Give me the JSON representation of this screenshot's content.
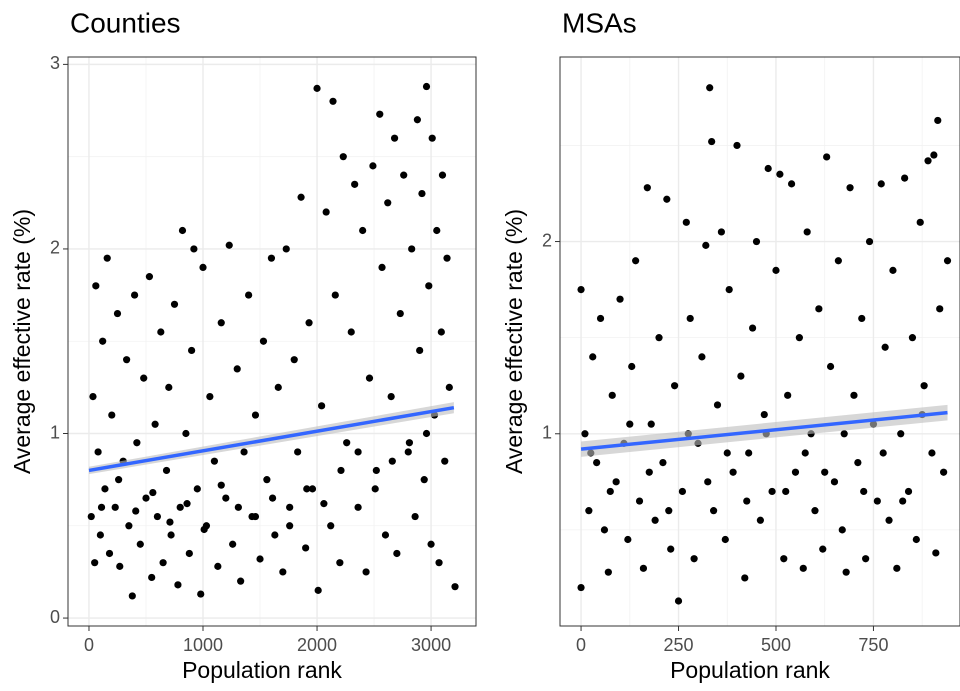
{
  "chart_data": [
    {
      "type": "scatter",
      "title": "Counties",
      "x_label": "Population rank",
      "y_label": "Average effective rate (%)",
      "color": "#000000",
      "fit_color": "#3366ff",
      "band_color": "#bdbdbd",
      "grid": true,
      "xlim": [
        -184,
        3394
      ],
      "ylim": [
        -0.043,
        3.04
      ],
      "xticks": [
        0,
        1000,
        2000,
        3000
      ],
      "yticks": [
        0,
        1,
        2,
        3
      ],
      "minor_xticks": [
        500,
        1500,
        2500
      ],
      "minor_yticks": [
        0.5,
        1.5,
        2.5
      ],
      "x": [
        20,
        35,
        50,
        60,
        80,
        100,
        120,
        140,
        160,
        180,
        200,
        230,
        250,
        270,
        300,
        330,
        350,
        380,
        400,
        420,
        450,
        480,
        500,
        530,
        550,
        580,
        600,
        630,
        650,
        680,
        700,
        720,
        750,
        780,
        800,
        820,
        850,
        880,
        900,
        920,
        950,
        980,
        1000,
        1030,
        1060,
        1100,
        1130,
        1160,
        1200,
        1230,
        1260,
        1300,
        1330,
        1360,
        1400,
        1430,
        1460,
        1500,
        1530,
        1560,
        1600,
        1630,
        1660,
        1700,
        1730,
        1760,
        1800,
        1830,
        1860,
        1900,
        1930,
        1960,
        2000,
        2010,
        2040,
        2080,
        2120,
        2140,
        2160,
        2200,
        2230,
        2260,
        2300,
        2330,
        2360,
        2400,
        2430,
        2460,
        2490,
        2520,
        2550,
        2570,
        2600,
        2620,
        2650,
        2680,
        2700,
        2730,
        2760,
        2800,
        2830,
        2860,
        2880,
        2900,
        2920,
        2940,
        2960,
        2980,
        3000,
        3010,
        3030,
        3050,
        3070,
        3090,
        3100,
        3120,
        3140,
        3160,
        3210,
        110,
        260,
        410,
        560,
        710,
        860,
        1010,
        1160,
        1310,
        1460,
        1610,
        1760,
        1910,
        2060,
        2210,
        2360,
        2510,
        2660,
        2810,
        2960
      ],
      "values": [
        0.55,
        1.2,
        0.3,
        1.8,
        0.9,
        0.45,
        1.5,
        0.7,
        1.95,
        0.35,
        1.1,
        0.6,
        1.65,
        0.28,
        0.85,
        1.4,
        0.5,
        0.12,
        1.75,
        0.95,
        0.4,
        1.3,
        0.65,
        1.85,
        0.22,
        1.05,
        0.55,
        1.55,
        0.3,
        0.8,
        1.25,
        0.45,
        1.7,
        0.18,
        0.6,
        2.1,
        1.0,
        0.35,
        1.45,
        2.0,
        0.7,
        0.13,
        1.9,
        0.5,
        1.2,
        0.85,
        0.28,
        1.6,
        0.65,
        2.02,
        0.4,
        1.35,
        0.2,
        0.9,
        1.75,
        0.55,
        1.1,
        0.32,
        1.5,
        0.75,
        1.95,
        0.45,
        1.25,
        0.25,
        2.0,
        0.6,
        1.4,
        0.9,
        2.28,
        0.38,
        1.6,
        0.7,
        2.87,
        0.15,
        1.15,
        2.2,
        0.5,
        2.8,
        1.75,
        0.3,
        2.5,
        0.95,
        1.55,
        2.35,
        0.6,
        2.1,
        0.25,
        1.3,
        2.45,
        0.8,
        2.73,
        1.9,
        0.45,
        2.25,
        1.2,
        2.6,
        0.35,
        1.65,
        2.4,
        0.9,
        2.0,
        0.55,
        2.7,
        1.45,
        2.3,
        0.75,
        2.88,
        1.8,
        0.4,
        2.6,
        1.1,
        2.1,
        0.3,
        1.55,
        2.4,
        0.85,
        1.95,
        1.25,
        0.17,
        0.6,
        0.75,
        0.58,
        0.68,
        0.52,
        0.62,
        0.48,
        0.72,
        0.6,
        0.55,
        0.65,
        0.5,
        0.7,
        0.62,
        0.8,
        0.9,
        0.7,
        0.85,
        0.95,
        1.0
      ],
      "fit": {
        "x": [
          0,
          3200
        ],
        "values": [
          0.8,
          1.14
        ],
        "lower": [
          0.78,
          1.11
        ],
        "upper": [
          0.82,
          1.17
        ]
      }
    },
    {
      "type": "scatter",
      "title": "MSAs",
      "x_label": "Population rank",
      "y_label": "Average effective rate (%)",
      "color": "#000000",
      "fit_color": "#3366ff",
      "band_color": "#bdbdbd",
      "grid": true,
      "xlim": [
        -54,
        972
      ],
      "ylim": [
        0,
        2.96
      ],
      "xticks": [
        0,
        250,
        500,
        750
      ],
      "yticks": [
        1,
        2
      ],
      "minor_xticks": [
        125,
        375,
        625,
        875
      ],
      "minor_yticks": [
        0.5,
        1.5,
        2.5
      ],
      "x": [
        0,
        0,
        10,
        20,
        30,
        40,
        50,
        60,
        70,
        80,
        90,
        100,
        110,
        120,
        130,
        140,
        150,
        160,
        170,
        180,
        190,
        200,
        210,
        220,
        230,
        240,
        250,
        260,
        270,
        280,
        290,
        300,
        310,
        320,
        330,
        335,
        340,
        350,
        360,
        370,
        380,
        390,
        400,
        410,
        420,
        430,
        440,
        450,
        460,
        470,
        480,
        490,
        500,
        510,
        520,
        530,
        540,
        550,
        560,
        570,
        580,
        590,
        600,
        610,
        620,
        630,
        640,
        650,
        660,
        670,
        680,
        690,
        700,
        710,
        720,
        730,
        740,
        750,
        760,
        770,
        780,
        790,
        800,
        810,
        820,
        830,
        840,
        850,
        860,
        870,
        880,
        890,
        900,
        905,
        910,
        915,
        920,
        930,
        940,
        25,
        75,
        125,
        175,
        225,
        275,
        325,
        375,
        425,
        475,
        525,
        575,
        625,
        675,
        725,
        775,
        825,
        875
      ],
      "values": [
        0.2,
        1.75,
        1.0,
        0.6,
        1.4,
        0.85,
        1.6,
        0.5,
        0.28,
        1.2,
        0.75,
        1.7,
        0.95,
        0.45,
        1.35,
        1.9,
        0.65,
        0.3,
        2.28,
        1.05,
        0.55,
        1.5,
        0.85,
        2.22,
        0.4,
        1.25,
        0.13,
        0.7,
        2.1,
        1.6,
        0.35,
        0.95,
        1.4,
        1.98,
        2.8,
        2.52,
        0.6,
        1.15,
        2.05,
        0.45,
        1.75,
        0.8,
        2.5,
        1.3,
        0.25,
        0.9,
        1.55,
        2.0,
        0.55,
        1.1,
        2.38,
        0.7,
        1.85,
        2.35,
        0.35,
        1.2,
        2.3,
        0.8,
        1.5,
        0.3,
        2.05,
        1.0,
        0.6,
        1.65,
        0.4,
        2.44,
        1.35,
        0.75,
        1.9,
        0.5,
        0.28,
        2.28,
        1.2,
        0.85,
        1.6,
        0.35,
        2.0,
        1.05,
        0.65,
        2.3,
        1.45,
        0.55,
        1.85,
        0.3,
        1.0,
        2.33,
        0.7,
        1.5,
        0.45,
        2.1,
        1.25,
        2.42,
        0.9,
        2.45,
        0.38,
        2.63,
        1.65,
        0.8,
        1.9,
        0.9,
        0.7,
        1.05,
        0.8,
        0.6,
        1.0,
        0.75,
        0.9,
        0.65,
        1.0,
        0.7,
        0.9,
        0.8,
        1.0,
        0.7,
        0.9,
        0.65,
        1.1
      ],
      "fit": {
        "x": [
          0,
          940
        ],
        "values": [
          0.92,
          1.11
        ],
        "lower": [
          0.88,
          1.07
        ],
        "upper": [
          0.96,
          1.15
        ]
      }
    }
  ]
}
